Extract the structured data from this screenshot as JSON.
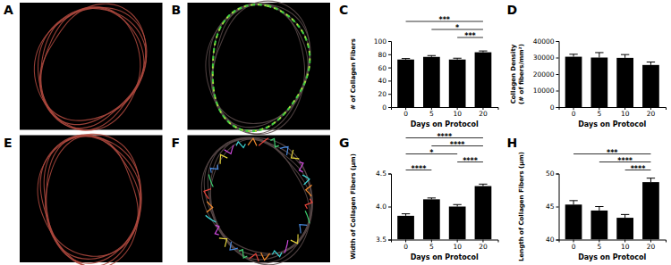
{
  "images": [
    {
      "label": "A"
    },
    {
      "label": "B"
    },
    {
      "label": "E"
    },
    {
      "label": "F"
    }
  ],
  "chart_data": [
    {
      "type": "bar",
      "title": "C",
      "xlabel": "Days on Protocol",
      "ylabel": "# of Collagen Fibers",
      "categories": [
        "0",
        "5",
        "10",
        "20"
      ],
      "values": [
        72,
        76,
        72,
        83
      ],
      "errors": [
        1.5,
        2,
        2,
        2
      ],
      "color": "#000000",
      "ylim": [
        0,
        100
      ],
      "yticks": [
        0,
        20,
        40,
        60,
        80,
        100
      ],
      "annotations": [
        {
          "from": 0,
          "to": 3,
          "text": "***"
        },
        {
          "from": 1,
          "to": 3,
          "text": "*"
        },
        {
          "from": 2,
          "to": 3,
          "text": "***"
        }
      ]
    },
    {
      "type": "bar",
      "title": "D",
      "xlabel": "Days on Protocol",
      "ylabel": [
        "Collagen Density",
        "(# of fibers/mm²)"
      ],
      "categories": [
        "0",
        "5",
        "10",
        "20"
      ],
      "values": [
        30500,
        30000,
        29800,
        25500
      ],
      "errors": [
        1500,
        3000,
        2000,
        1800
      ],
      "color": "#000000",
      "ylim": [
        0,
        40000
      ],
      "yticks": [
        0,
        10000,
        20000,
        30000,
        40000
      ]
    },
    {
      "type": "bar",
      "title": "G",
      "xlabel": "Days on Protocol",
      "ylabel": "Width of Collagen Fibers (μm)",
      "categories": [
        "0",
        "5",
        "10",
        "20"
      ],
      "values": [
        3.86,
        4.11,
        4.0,
        4.31
      ],
      "errors": [
        0.03,
        0.02,
        0.03,
        0.03
      ],
      "color": "#000000",
      "ylim": [
        3.5,
        4.5
      ],
      "yticks": [
        3.5,
        {
          "value": 4,
          "label": "4.0"
        },
        4.5
      ],
      "annotations": [
        {
          "from": 0,
          "to": 3,
          "text": "****"
        },
        {
          "from": 1,
          "to": 3,
          "text": "****"
        },
        {
          "from": 0,
          "to": 2,
          "text": "*"
        },
        {
          "from": 2,
          "to": 3,
          "text": "****"
        },
        {
          "from": 0,
          "to": 1,
          "text": "****"
        }
      ]
    },
    {
      "type": "bar",
      "title": "H",
      "xlabel": "Days on Protocol",
      "ylabel": "Length of Collagen Fibers (μm)",
      "categories": [
        "0",
        "5",
        "10",
        "20"
      ],
      "values": [
        45.3,
        44.4,
        43.3,
        48.7
      ],
      "errors": [
        0.6,
        0.6,
        0.5,
        0.6
      ],
      "color": "#000000",
      "ylim": [
        40,
        50
      ],
      "yticks": [
        40,
        45,
        50
      ],
      "annotations": [
        {
          "from": 0,
          "to": 3,
          "text": "***"
        },
        {
          "from": 1,
          "to": 3,
          "text": "****"
        },
        {
          "from": 2,
          "to": 3,
          "text": "****"
        }
      ]
    }
  ]
}
